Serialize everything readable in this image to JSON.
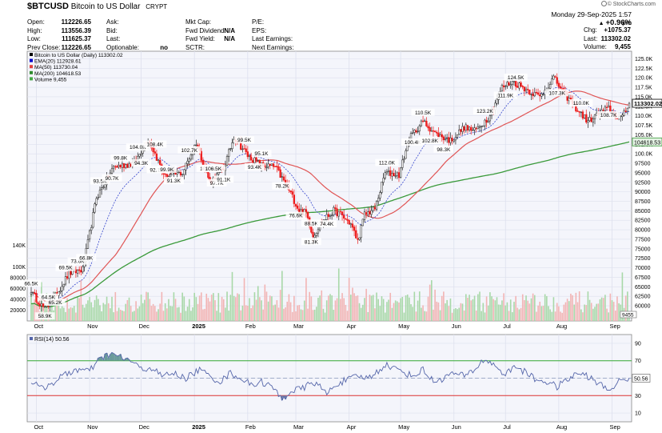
{
  "header": {
    "symbol": "$BTCUSD",
    "name": "Bitcoin to US Dollar",
    "exchange": "CRYPT",
    "watermark": "© StockCharts.com",
    "date": "Monday  29-Sep-2025  1:57 pm",
    "change_pct": "+0.96%",
    "quote_left": [
      [
        "Open:",
        "112226.65"
      ],
      [
        "High:",
        "113556.39"
      ],
      [
        "Low:",
        "111625.37"
      ],
      [
        "Prev Close:",
        "112226.65"
      ]
    ],
    "quote_mid": [
      [
        "Ask:",
        ""
      ],
      [
        "Bid:",
        ""
      ],
      [
        "Last:",
        ""
      ],
      [
        "Optionable:",
        "no"
      ]
    ],
    "quote_mid2": [
      [
        "Mkt Cap:",
        ""
      ],
      [
        "Fwd Dividend:",
        "N/A"
      ],
      [
        "Fwd Yield:",
        "N/A"
      ],
      [
        "SCTR:",
        ""
      ]
    ],
    "quote_right": [
      [
        "P/E:",
        ""
      ],
      [
        "EPS:",
        ""
      ],
      [
        "Last Earnings:",
        ""
      ],
      [
        "Next Earnings:",
        ""
      ]
    ],
    "quote_far": [
      [
        "Chg:",
        "+1075.37"
      ],
      [
        "Last:",
        "113302.02"
      ],
      [
        "Volume:",
        "9,455"
      ]
    ]
  },
  "legend": [
    {
      "text": "Bitcoin to US Dollar (Daily) 113302.02",
      "color": "#000000"
    },
    {
      "text": "EMA(20) 112928.61",
      "color": "#0000cc"
    },
    {
      "text": "MA(50) 113730.04",
      "color": "#e04040"
    },
    {
      "text": "MA(200) 104618.53",
      "color": "#2e8b2e"
    },
    {
      "text": "Volume 9,455",
      "color": "#44aa44"
    }
  ],
  "colors": {
    "up": "#222222",
    "down": "#ee1c1c",
    "ema20": "#3344cc",
    "ma50": "#e05555",
    "ma200": "#3a9a3a",
    "vol_up": "#a8d8a8",
    "vol_down": "#f2b4b4",
    "rsi": "#5566aa",
    "panel_bg": "#f4f5fb",
    "grid": "#dde0ee",
    "rsi_high": "#33aa33",
    "rsi_low": "#dd3333"
  },
  "chart_data": [
    {
      "type": "candlestick",
      "title": "Bitcoin to US Dollar (Daily)",
      "x_months": [
        "Oct",
        "Nov",
        "Dec",
        "2025",
        "Feb",
        "Mar",
        "Apr",
        "May",
        "Jun",
        "Jul",
        "Aug",
        "Sep"
      ],
      "ylim": [
        56000,
        127000
      ],
      "y_ticks": [
        60000,
        62500,
        65000,
        67500,
        70000,
        72500,
        75000,
        77500,
        80000,
        82500,
        85000,
        87500,
        90000,
        92500,
        95000,
        97500,
        100000,
        102500,
        105000,
        107500,
        110000,
        112500,
        115000,
        117500,
        120000,
        122500,
        125000
      ],
      "y_tick_labels": [
        "60000",
        "62500",
        "65000",
        "67500",
        "70000",
        "72500",
        "75000",
        "77500",
        "80000",
        "82500",
        "85000",
        "87500",
        "90000",
        "92500",
        "95000",
        "97500",
        "100.0K",
        "102.5K",
        "105.0K",
        "107.5K",
        "110.0K",
        "112.5K",
        "115.0K",
        "117.5K",
        "120.0K",
        "122.5K",
        "125.0K"
      ],
      "last_price_label": "113302.02",
      "ma200_label": "104618.53",
      "close_anchors": [
        [
          0,
          63500
        ],
        [
          8,
          59000
        ],
        [
          14,
          62500
        ],
        [
          22,
          68500
        ],
        [
          30,
          69500
        ],
        [
          38,
          88500
        ],
        [
          48,
          96500
        ],
        [
          60,
          97500
        ],
        [
          68,
          104000
        ],
        [
          78,
          94000
        ],
        [
          88,
          95000
        ],
        [
          96,
          103000
        ],
        [
          104,
          92500
        ],
        [
          112,
          96000
        ],
        [
          118,
          104500
        ],
        [
          126,
          99500
        ],
        [
          134,
          97000
        ],
        [
          142,
          96500
        ],
        [
          150,
          90500
        ],
        [
          156,
          85000
        ],
        [
          160,
          84500
        ],
        [
          164,
          78500
        ],
        [
          170,
          82500
        ],
        [
          176,
          85000
        ],
        [
          180,
          84000
        ],
        [
          186,
          81500
        ],
        [
          190,
          77000
        ],
        [
          194,
          84000
        ],
        [
          200,
          85500
        ],
        [
          206,
          95000
        ],
        [
          214,
          94500
        ],
        [
          220,
          104000
        ],
        [
          228,
          108500
        ],
        [
          236,
          105000
        ],
        [
          244,
          103500
        ],
        [
          252,
          107000
        ],
        [
          258,
          106000
        ],
        [
          266,
          109500
        ],
        [
          274,
          117500
        ],
        [
          280,
          119000
        ],
        [
          288,
          117000
        ],
        [
          296,
          115000
        ],
        [
          304,
          120000
        ],
        [
          310,
          116000
        ],
        [
          318,
          111500
        ],
        [
          324,
          108500
        ],
        [
          330,
          110500
        ],
        [
          336,
          112000
        ],
        [
          340,
          110000
        ],
        [
          344,
          109500
        ],
        [
          348,
          113300
        ]
      ],
      "annotations": [
        {
          "i": 0,
          "text": "66.5K",
          "pos": "above"
        },
        {
          "i": 8,
          "text": "58.9K",
          "pos": "below"
        },
        {
          "i": 14,
          "text": "65.2K",
          "pos": "below"
        },
        {
          "i": 10,
          "text": "64.5K",
          "pos": "above"
        },
        {
          "i": 20,
          "text": "69.5K",
          "pos": "above"
        },
        {
          "i": 27,
          "text": "73.6K",
          "pos": "above"
        },
        {
          "i": 32,
          "text": "66.8K",
          "pos": "below"
        },
        {
          "i": 40,
          "text": "93.5K",
          "pos": "above"
        },
        {
          "i": 47,
          "text": "90.7K",
          "pos": "below"
        },
        {
          "i": 52,
          "text": "99.8K",
          "pos": "above"
        },
        {
          "i": 62,
          "text": "104.0K",
          "pos": "above"
        },
        {
          "i": 64,
          "text": "94.3K",
          "pos": "below"
        },
        {
          "i": 72,
          "text": "108.4K",
          "pos": "above"
        },
        {
          "i": 73,
          "text": "92.1K",
          "pos": "below"
        },
        {
          "i": 79,
          "text": "99.9K",
          "pos": "above"
        },
        {
          "i": 83,
          "text": "91.3K",
          "pos": "below"
        },
        {
          "i": 92,
          "text": "102.7K",
          "pos": "above"
        },
        {
          "i": 103,
          "text": "109.3K",
          "pos": "above"
        },
        {
          "i": 106,
          "text": "106.5K",
          "pos": "above"
        },
        {
          "i": 108,
          "text": "97.7K",
          "pos": "below"
        },
        {
          "i": 112,
          "text": "91.1K",
          "pos": "below"
        },
        {
          "i": 124,
          "text": "99.5K",
          "pos": "above"
        },
        {
          "i": 130,
          "text": "93.4K",
          "pos": "below"
        },
        {
          "i": 134,
          "text": "95.1K",
          "pos": "above"
        },
        {
          "i": 146,
          "text": "78.2K",
          "pos": "below"
        },
        {
          "i": 154,
          "text": "76.6K",
          "pos": "below"
        },
        {
          "i": 163,
          "text": "88.5K",
          "pos": "above"
        },
        {
          "i": 163,
          "text": "81.3K",
          "pos": "below"
        },
        {
          "i": 172,
          "text": "74.4K",
          "pos": "below"
        },
        {
          "i": 207,
          "text": "112.0K",
          "pos": "above"
        },
        {
          "i": 228,
          "text": "110.5K",
          "pos": "above"
        },
        {
          "i": 222,
          "text": "100.4K",
          "pos": "below"
        },
        {
          "i": 232,
          "text": "102.8K",
          "pos": "below"
        },
        {
          "i": 240,
          "text": "98.3K",
          "pos": "below"
        },
        {
          "i": 264,
          "text": "123.2K",
          "pos": "above"
        },
        {
          "i": 282,
          "text": "124.5K",
          "pos": "above"
        },
        {
          "i": 276,
          "text": "111.9K",
          "pos": "below"
        },
        {
          "i": 306,
          "text": "107.3K",
          "pos": "below"
        },
        {
          "i": 320,
          "text": "110.0K",
          "pos": "above"
        },
        {
          "i": 336,
          "text": "108.7K",
          "pos": "below"
        }
      ]
    },
    {
      "type": "bar",
      "title": "Volume",
      "y_ticks": [
        20000,
        40000,
        60000,
        80000,
        100000,
        140000
      ],
      "y_tick_labels": [
        "20000",
        "40000",
        "60000",
        "80000",
        "100K",
        "140K"
      ],
      "ylim": [
        0,
        150000
      ],
      "last_value": 9455,
      "last_label": "9455"
    },
    {
      "type": "line",
      "title": "RSI(14) 50.56",
      "ylim": [
        0,
        100
      ],
      "y_ticks": [
        10,
        30,
        50,
        70,
        90
      ],
      "y_tick_labels": [
        "10",
        "30",
        "50",
        "70",
        "90"
      ],
      "last_label": "50.56",
      "rsi_anchors": [
        [
          0,
          46
        ],
        [
          6,
          38
        ],
        [
          12,
          44
        ],
        [
          18,
          52
        ],
        [
          26,
          60
        ],
        [
          34,
          58
        ],
        [
          40,
          72
        ],
        [
          46,
          78
        ],
        [
          52,
          74
        ],
        [
          58,
          70
        ],
        [
          64,
          60
        ],
        [
          70,
          62
        ],
        [
          76,
          52
        ],
        [
          82,
          56
        ],
        [
          90,
          50
        ],
        [
          98,
          60
        ],
        [
          104,
          52
        ],
        [
          110,
          46
        ],
        [
          116,
          56
        ],
        [
          122,
          50
        ],
        [
          128,
          42
        ],
        [
          134,
          46
        ],
        [
          140,
          40
        ],
        [
          146,
          26
        ],
        [
          152,
          36
        ],
        [
          158,
          38
        ],
        [
          164,
          46
        ],
        [
          168,
          40
        ],
        [
          172,
          32
        ],
        [
          178,
          44
        ],
        [
          184,
          48
        ],
        [
          190,
          52
        ],
        [
          196,
          50
        ],
        [
          202,
          58
        ],
        [
          206,
          66
        ],
        [
          210,
          62
        ],
        [
          216,
          58
        ],
        [
          222,
          52
        ],
        [
          228,
          60
        ],
        [
          234,
          46
        ],
        [
          240,
          50
        ],
        [
          246,
          56
        ],
        [
          252,
          52
        ],
        [
          258,
          60
        ],
        [
          264,
          72
        ],
        [
          270,
          64
        ],
        [
          276,
          54
        ],
        [
          282,
          64
        ],
        [
          288,
          56
        ],
        [
          294,
          48
        ],
        [
          300,
          46
        ],
        [
          306,
          40
        ],
        [
          312,
          48
        ],
        [
          318,
          56
        ],
        [
          324,
          52
        ],
        [
          330,
          44
        ],
        [
          336,
          36
        ],
        [
          342,
          46
        ],
        [
          348,
          50
        ]
      ]
    }
  ]
}
